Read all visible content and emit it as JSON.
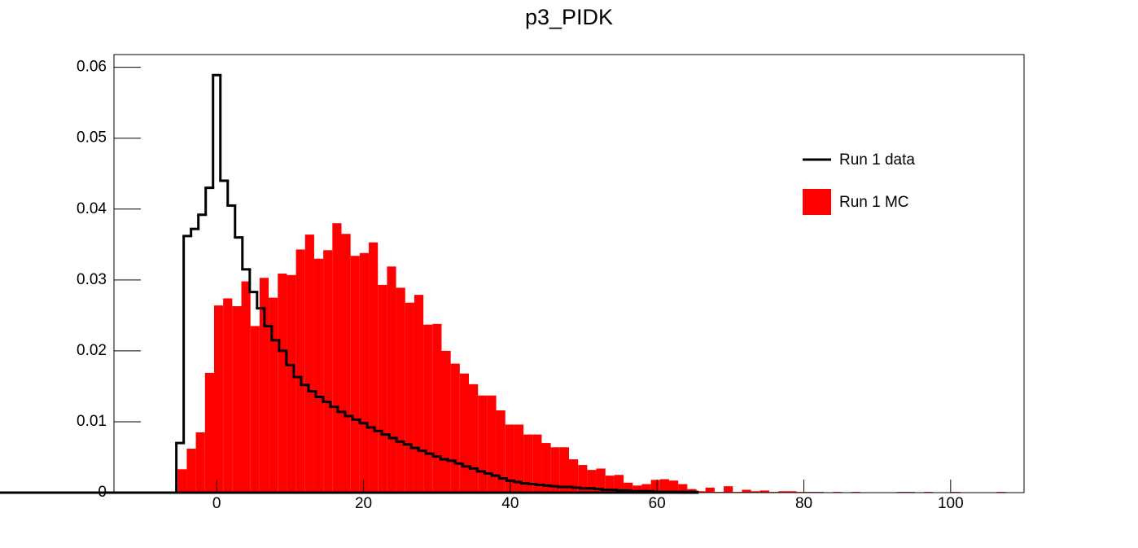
{
  "chart_data": {
    "type": "histogram",
    "title": "p3_PIDK",
    "xlim": [
      -14,
      110
    ],
    "ylim": [
      0,
      0.0618
    ],
    "xticks": [
      0,
      20,
      40,
      60,
      80,
      100
    ],
    "yticks": [
      0,
      0.01,
      0.02,
      0.03,
      0.04,
      0.05,
      0.06
    ],
    "legend": "upper right",
    "series": [
      {
        "name": "Run 1 data",
        "color": "#000000",
        "style": "step",
        "bins": [
          -11.5,
          -10.5,
          -9.5,
          -8.5,
          -7.5,
          -6.5,
          -5.5,
          -4.5,
          -3.5,
          -2.5,
          -1.5,
          -0.5,
          0.5,
          1.5,
          2.5,
          3.5,
          4.5,
          5.5,
          6.5,
          7.5,
          8.5,
          9.5,
          10.5,
          11.5,
          12.5,
          13.5,
          14.5,
          15.5,
          16.5,
          17.5,
          18.5,
          19.5,
          20.5,
          21.5,
          22.5,
          23.5,
          24.5,
          25.5,
          26.5,
          27.5,
          28.5,
          29.5,
          30.5,
          31.5,
          32.5,
          33.5,
          34.5,
          35.5,
          36.5,
          37.5,
          38.5,
          39.5,
          40.5,
          41.5,
          42.5,
          43.5,
          44.5,
          45.5,
          46.5,
          47.5,
          48.5,
          49.5,
          50.5,
          51.5,
          52.5,
          53.5,
          54.5,
          55.5,
          56.5,
          57.5,
          58.5,
          59.5,
          60.5,
          61.5,
          62.5,
          63.5,
          64.5,
          65.5
        ],
        "values": [
          0,
          0,
          0,
          0,
          0,
          0,
          0.007,
          0.0362,
          0.0372,
          0.0392,
          0.043,
          0.0589,
          0.044,
          0.0405,
          0.036,
          0.0315,
          0.0283,
          0.026,
          0.0235,
          0.0215,
          0.02,
          0.018,
          0.0163,
          0.0152,
          0.0143,
          0.0135,
          0.0128,
          0.0121,
          0.0114,
          0.0108,
          0.0103,
          0.0098,
          0.0092,
          0.0087,
          0.0082,
          0.0077,
          0.0072,
          0.0068,
          0.0063,
          0.0059,
          0.0055,
          0.0051,
          0.0047,
          0.0045,
          0.0041,
          0.0037,
          0.0034,
          0.003,
          0.0027,
          0.0024,
          0.002,
          0.0017,
          0.0015,
          0.0013,
          0.0012,
          0.0011,
          0.001,
          0.0009,
          0.0008,
          0.0008,
          0.0007,
          0.0006,
          0.0006,
          0.0005,
          0.0004,
          0.0004,
          0.0003,
          0.0003,
          0.0002,
          0.0002,
          0.0002,
          0.0001,
          0.0001,
          0.0001,
          0.0001,
          0.0001,
          0.0001,
          0
        ]
      },
      {
        "name": "Run 1 MC",
        "color": "#ff0000",
        "style": "fill",
        "bins": [
          -5.32,
          -4.08,
          -2.84,
          -1.6,
          -0.36,
          0.88,
          2.12,
          3.36,
          4.6,
          5.84,
          7.08,
          8.32,
          9.56,
          10.8,
          12.04,
          13.28,
          14.52,
          15.76,
          17,
          18.24,
          19.48,
          20.72,
          21.96,
          23.2,
          24.44,
          25.68,
          26.92,
          28.16,
          29.4,
          30.64,
          31.88,
          33.12,
          34.36,
          35.6,
          36.84,
          38.08,
          39.32,
          40.56,
          41.8,
          43.04,
          44.28,
          45.52,
          46.76,
          48,
          49.24,
          50.48,
          51.72,
          52.96,
          54.2,
          55.44,
          56.68,
          57.92,
          59.16,
          60.4,
          61.64,
          62.88,
          64.12,
          65.36,
          66.6,
          67.84,
          69.08,
          70.32,
          71.56,
          72.8,
          74.04,
          75.28,
          76.52,
          77.76,
          79,
          80.24,
          81.48,
          82.72,
          83.96,
          85.2,
          86.44,
          87.68,
          88.92,
          90.16,
          91.4,
          92.64,
          93.88,
          95.12,
          96.36,
          97.6,
          98.84,
          100.08,
          101.32,
          102.56,
          103.8,
          105.04,
          106.28,
          107.52
        ],
        "values": [
          0.0033,
          0.0062,
          0.0085,
          0.0169,
          0.0264,
          0.0274,
          0.0263,
          0.0298,
          0.0235,
          0.0303,
          0.0275,
          0.0309,
          0.0307,
          0.0343,
          0.0364,
          0.033,
          0.0342,
          0.038,
          0.0365,
          0.0334,
          0.0338,
          0.0353,
          0.0293,
          0.0319,
          0.0289,
          0.0268,
          0.0279,
          0.0237,
          0.0238,
          0.02,
          0.0182,
          0.0168,
          0.0153,
          0.0137,
          0.0137,
          0.0116,
          0.0096,
          0.0096,
          0.0082,
          0.0082,
          0.007,
          0.0064,
          0.0064,
          0.0047,
          0.0039,
          0.0032,
          0.0034,
          0.0024,
          0.0025,
          0.0014,
          0.001,
          0.0012,
          0.0018,
          0.0019,
          0.0017,
          0.0012,
          0.0005,
          0.0002,
          0.0007,
          0.0001,
          0.0009,
          0.0001,
          0.0004,
          0.0002,
          0.0003,
          0.0001,
          0.0002,
          0.0002,
          0.0001,
          0.0001,
          0.0001,
          0,
          0.0001,
          0,
          0.0001,
          0,
          0,
          0,
          0,
          0.0001,
          0.0001,
          0,
          0.0001,
          0,
          0,
          0.0001,
          0,
          0,
          0,
          0,
          0.0001
        ]
      }
    ]
  }
}
